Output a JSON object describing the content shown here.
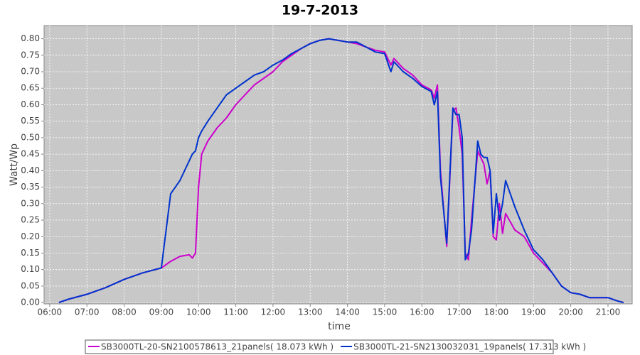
{
  "chart_data": {
    "type": "line",
    "title": "19-7-2013",
    "x_label": "time",
    "y_label": "Watt/Wp",
    "x": [
      "06:15",
      "06:30",
      "07:00",
      "07:30",
      "08:00",
      "08:30",
      "09:00",
      "09:15",
      "09:30",
      "09:45",
      "09:50",
      "09:55",
      "10:00",
      "10:05",
      "10:15",
      "10:30",
      "10:45",
      "11:00",
      "11:15",
      "11:30",
      "11:45",
      "12:00",
      "12:15",
      "12:30",
      "12:45",
      "13:00",
      "13:15",
      "13:30",
      "13:45",
      "14:00",
      "14:15",
      "14:30",
      "14:45",
      "15:00",
      "15:10",
      "15:15",
      "15:30",
      "15:45",
      "16:00",
      "16:15",
      "16:20",
      "16:25",
      "16:30",
      "16:40",
      "16:50",
      "16:55",
      "17:00",
      "17:05",
      "17:10",
      "17:15",
      "17:20",
      "17:30",
      "17:35",
      "17:40",
      "17:45",
      "17:50",
      "17:55",
      "18:00",
      "18:05",
      "18:10",
      "18:15",
      "18:30",
      "18:45",
      "19:00",
      "19:15",
      "19:30",
      "19:45",
      "20:00",
      "20:15",
      "20:30",
      "20:45",
      "21:00",
      "21:15",
      "21:25"
    ],
    "series": [
      {
        "name": "SB3000TL-20-SN2100578613_21panels( 18.073 kWh )",
        "color": "#cc00cc",
        "values": [
          0.0,
          0.01,
          0.025,
          0.045,
          0.07,
          0.09,
          0.105,
          0.125,
          0.14,
          0.145,
          0.135,
          0.15,
          0.35,
          0.45,
          0.49,
          0.53,
          0.56,
          0.6,
          0.63,
          0.66,
          0.68,
          0.7,
          0.73,
          0.75,
          0.77,
          0.785,
          0.795,
          0.8,
          0.795,
          0.79,
          0.785,
          0.775,
          0.765,
          0.76,
          0.72,
          0.74,
          0.71,
          0.69,
          0.66,
          0.645,
          0.62,
          0.66,
          0.4,
          0.17,
          0.58,
          0.59,
          0.53,
          0.45,
          0.15,
          0.13,
          0.25,
          0.46,
          0.44,
          0.42,
          0.36,
          0.4,
          0.2,
          0.19,
          0.3,
          0.21,
          0.27,
          0.22,
          0.2,
          0.15,
          0.12,
          0.09,
          0.05,
          0.03,
          0.025,
          0.015,
          0.015,
          0.015,
          0.005,
          0.0
        ]
      },
      {
        "name": "SB3000TL-21-SN2130032031_19panels( 17.313 kWh )",
        "color": "#0033cc",
        "values": [
          0.0,
          0.01,
          0.025,
          0.045,
          0.07,
          0.09,
          0.105,
          0.33,
          0.37,
          0.43,
          0.45,
          0.46,
          0.5,
          0.52,
          0.55,
          0.59,
          0.63,
          0.65,
          0.67,
          0.69,
          0.7,
          0.72,
          0.735,
          0.755,
          0.77,
          0.785,
          0.795,
          0.8,
          0.795,
          0.79,
          0.79,
          0.775,
          0.76,
          0.755,
          0.7,
          0.73,
          0.7,
          0.68,
          0.655,
          0.64,
          0.6,
          0.64,
          0.38,
          0.18,
          0.59,
          0.57,
          0.57,
          0.5,
          0.13,
          0.15,
          0.22,
          0.49,
          0.45,
          0.44,
          0.44,
          0.4,
          0.21,
          0.33,
          0.25,
          0.3,
          0.37,
          0.29,
          0.22,
          0.16,
          0.13,
          0.09,
          0.05,
          0.03,
          0.025,
          0.015,
          0.015,
          0.015,
          0.005,
          0.0
        ]
      }
    ],
    "xlim": [
      "05:51",
      "21:39"
    ],
    "xticks": [
      "06:00",
      "07:00",
      "08:00",
      "09:00",
      "10:00",
      "11:00",
      "12:00",
      "13:00",
      "14:00",
      "15:00",
      "16:00",
      "17:00",
      "18:00",
      "19:00",
      "20:00",
      "21:00"
    ],
    "ylim": [
      -0.004,
      0.84
    ],
    "yticks": [
      {
        "value": 0,
        "label": "0.00"
      },
      {
        "value": 0.05,
        "label": "0.05"
      },
      {
        "value": 0.1,
        "label": "0.10"
      },
      {
        "value": 0.15,
        "label": "0.15"
      },
      {
        "value": 0.2,
        "label": "0.20"
      },
      {
        "value": 0.25,
        "label": "0.25"
      },
      {
        "value": 0.3,
        "label": "0.30"
      },
      {
        "value": 0.35,
        "label": "0.35"
      },
      {
        "value": 0.4,
        "label": "0.40"
      },
      {
        "value": 0.45,
        "label": "0.45"
      },
      {
        "value": 0.5,
        "label": "0.50"
      },
      {
        "value": 0.55,
        "label": "0.55"
      },
      {
        "value": 0.6,
        "label": "0.60"
      },
      {
        "value": 0.65,
        "label": "0.65"
      },
      {
        "value": 0.7,
        "label": "0.70"
      },
      {
        "value": 0.75,
        "label": "0.75"
      },
      {
        "value": 0.8,
        "label": "0.80"
      }
    ],
    "grid": true,
    "legend": "bottom"
  }
}
